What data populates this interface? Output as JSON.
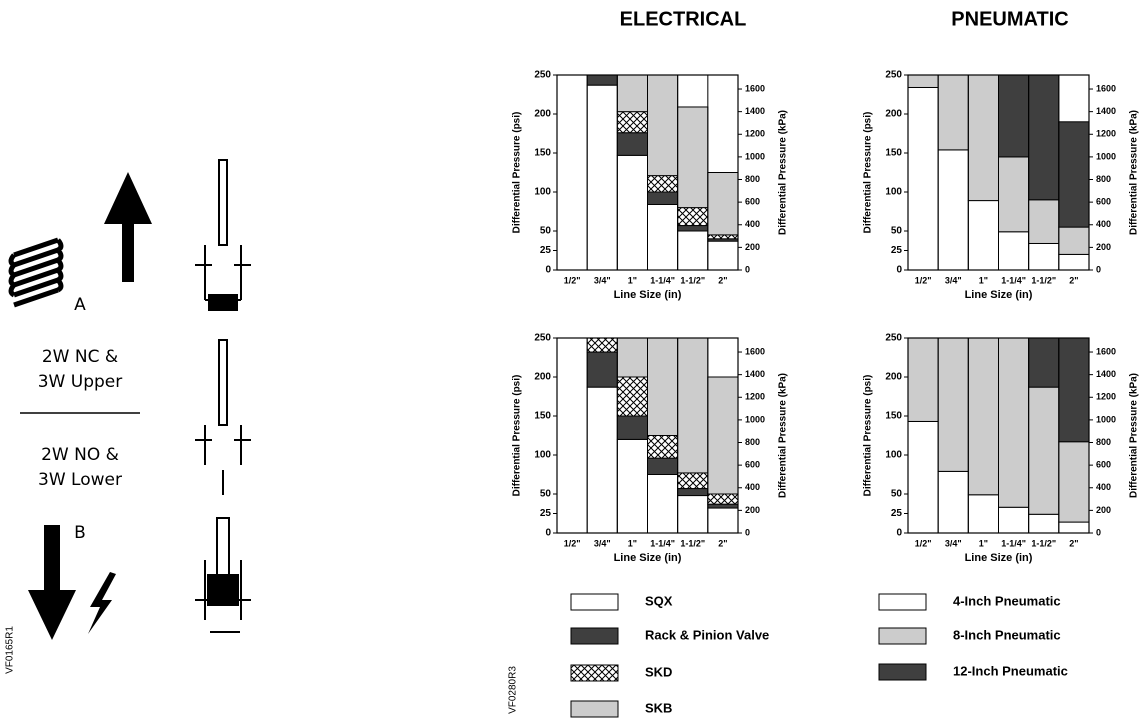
{
  "column_titles": [
    "ELECTRICAL",
    "PNEUMATIC"
  ],
  "diagram": {
    "label_a": "A",
    "upper_text": [
      "2W NC &",
      "3W Upper"
    ],
    "lower_text": [
      "2W NO &",
      "3W Lower"
    ],
    "label_b": "B",
    "code": "VF0165R1"
  },
  "figure_code": "VF0280R3",
  "chart_data": [
    {
      "type": "bar",
      "stacked": true,
      "categories": [
        "1/2\"",
        "3/4\"",
        "1\"",
        "1-1/4\"",
        "1-1/2\"",
        "2\""
      ],
      "xlabel": "Line Size (in)",
      "ylabel": "Differential Pressure (psi)",
      "y2label": "Differential Pressure (kPa)",
      "ylim": [
        0,
        250
      ],
      "yticks": [
        0,
        25,
        50,
        100,
        150,
        200,
        250
      ],
      "y2lim": [
        0,
        1724
      ],
      "y2ticks": [
        0,
        200,
        400,
        600,
        800,
        1000,
        1200,
        1400,
        1600
      ],
      "series": [
        {
          "name": "SQX",
          "color": "#ffffff",
          "values": [
            null,
            237,
            147,
            84,
            50,
            37
          ]
        },
        {
          "name": "Rack & Pinion Valve",
          "color": "#3f3f3f",
          "values": [
            null,
            13,
            29,
            16,
            7,
            3
          ]
        },
        {
          "name": "SKD",
          "color": "#ffffff",
          "pattern": "crosshatch",
          "values": [
            null,
            null,
            27,
            21,
            23,
            5
          ]
        },
        {
          "name": "SKB",
          "color": "#cccccc",
          "values": [
            null,
            null,
            47,
            129,
            129,
            80
          ]
        }
      ]
    },
    {
      "type": "bar",
      "stacked": true,
      "categories": [
        "1/2\"",
        "3/4\"",
        "1\"",
        "1-1/4\"",
        "1-1/2\"",
        "2\""
      ],
      "xlabel": "Line Size (in)",
      "ylabel": "Differential Pressure (psi)",
      "y2label": "Differential Pressure (kPa)",
      "ylim": [
        0,
        250
      ],
      "yticks": [
        0,
        25,
        50,
        100,
        150,
        200,
        250
      ],
      "y2lim": [
        0,
        1724
      ],
      "y2ticks": [
        0,
        200,
        400,
        600,
        800,
        1000,
        1200,
        1400,
        1600
      ],
      "series": [
        {
          "name": "4-Inch Pneumatic",
          "color": "#ffffff",
          "values": [
            234,
            154,
            89,
            49,
            34,
            20
          ]
        },
        {
          "name": "8-Inch Pneumatic",
          "color": "#cccccc",
          "values": [
            16,
            96,
            161,
            96,
            56,
            35
          ]
        },
        {
          "name": "12-Inch Pneumatic",
          "color": "#3f3f3f",
          "values": [
            null,
            null,
            null,
            105,
            160,
            135
          ]
        }
      ]
    },
    {
      "type": "bar",
      "stacked": true,
      "categories": [
        "1/2\"",
        "3/4\"",
        "1\"",
        "1-1/4\"",
        "1-1/2\"",
        "2\""
      ],
      "xlabel": "Line Size (in)",
      "ylabel": "Differential Pressure (psi)",
      "y2label": "Differential Pressure (kPa)",
      "ylim": [
        0,
        250
      ],
      "yticks": [
        0,
        25,
        50,
        100,
        150,
        200,
        250
      ],
      "y2lim": [
        0,
        1724
      ],
      "y2ticks": [
        0,
        200,
        400,
        600,
        800,
        1000,
        1200,
        1400,
        1600
      ],
      "series": [
        {
          "name": "SQX",
          "color": "#ffffff",
          "values": [
            null,
            187,
            120,
            75,
            48,
            32
          ]
        },
        {
          "name": "Rack & Pinion Valve",
          "color": "#3f3f3f",
          "values": [
            null,
            45,
            30,
            21,
            9,
            5
          ]
        },
        {
          "name": "SKD",
          "color": "#ffffff",
          "pattern": "crosshatch",
          "values": [
            null,
            18,
            50,
            29,
            20,
            13
          ]
        },
        {
          "name": "SKB",
          "color": "#cccccc",
          "values": [
            null,
            null,
            50,
            125,
            173,
            150
          ]
        }
      ]
    },
    {
      "type": "bar",
      "stacked": true,
      "categories": [
        "1/2\"",
        "3/4\"",
        "1\"",
        "1-1/4\"",
        "1-1/2\"",
        "2\""
      ],
      "xlabel": "Line Size (in)",
      "ylabel": "Differential Pressure (psi)",
      "y2label": "Differential Pressure (kPa)",
      "ylim": [
        0,
        250
      ],
      "yticks": [
        0,
        25,
        50,
        100,
        150,
        200,
        250
      ],
      "y2lim": [
        0,
        1724
      ],
      "y2ticks": [
        0,
        200,
        400,
        600,
        800,
        1000,
        1200,
        1400,
        1600
      ],
      "series": [
        {
          "name": "4-Inch Pneumatic",
          "color": "#ffffff",
          "values": [
            143,
            79,
            49,
            33,
            24,
            14
          ]
        },
        {
          "name": "8-Inch Pneumatic",
          "color": "#cccccc",
          "values": [
            107,
            171,
            201,
            217,
            163,
            103
          ]
        },
        {
          "name": "12-Inch Pneumatic",
          "color": "#3f3f3f",
          "values": [
            null,
            null,
            null,
            null,
            63,
            133
          ]
        }
      ]
    }
  ]
}
